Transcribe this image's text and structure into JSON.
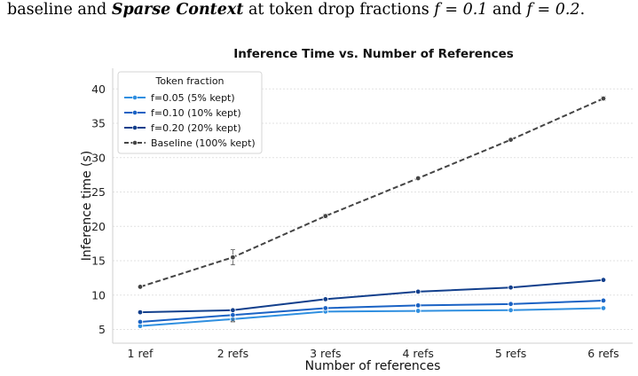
{
  "caption": {
    "pre": "baseline and ",
    "bold": "Sparse Context",
    "mid": " at token drop fractions ",
    "eq1": "f = 0.1",
    "and": " and ",
    "eq2": "f = 0.2",
    "end": "."
  },
  "chart_data": {
    "type": "line",
    "title": "Inference Time vs. Number of References",
    "xlabel": "Number of references",
    "ylabel": "Inference time (s)",
    "categories": [
      "1 ref",
      "2 refs",
      "3 refs",
      "4 refs",
      "5 refs",
      "6 refs"
    ],
    "ylim": [
      3,
      43
    ],
    "yticks": [
      5,
      10,
      15,
      20,
      25,
      30,
      35,
      40
    ],
    "grid": "horizontal dotted",
    "legend": {
      "title": "Token fraction",
      "placement": "top-left"
    },
    "series": [
      {
        "name": "f=0.05  (5% kept)",
        "color": "#2f8fe0",
        "dashed": false,
        "values": [
          5.5,
          6.5,
          7.6,
          7.7,
          7.8,
          8.1
        ],
        "err": [
          0.2,
          0.4,
          0.2,
          0.1,
          0.1,
          0.1
        ]
      },
      {
        "name": "f=0.10  (10% kept)",
        "color": "#1a62c4",
        "dashed": false,
        "values": [
          6.1,
          7.1,
          8.1,
          8.5,
          8.7,
          9.2
        ],
        "err": [
          0.2,
          0.9,
          0.2,
          0.1,
          0.1,
          0.1
        ]
      },
      {
        "name": "f=0.20  (20% kept)",
        "color": "#123f8c",
        "dashed": false,
        "values": [
          7.5,
          7.8,
          9.4,
          10.5,
          11.1,
          12.2
        ],
        "err": [
          0.1,
          0.2,
          0.2,
          0.1,
          0.1,
          0.1
        ]
      },
      {
        "name": "Baseline  (100% kept)",
        "color": "#444444",
        "dashed": true,
        "values": [
          11.2,
          15.5,
          21.5,
          27.0,
          32.6,
          38.6
        ],
        "err": [
          0.2,
          1.1,
          0.3,
          0.2,
          0.2,
          0.3
        ]
      }
    ]
  }
}
